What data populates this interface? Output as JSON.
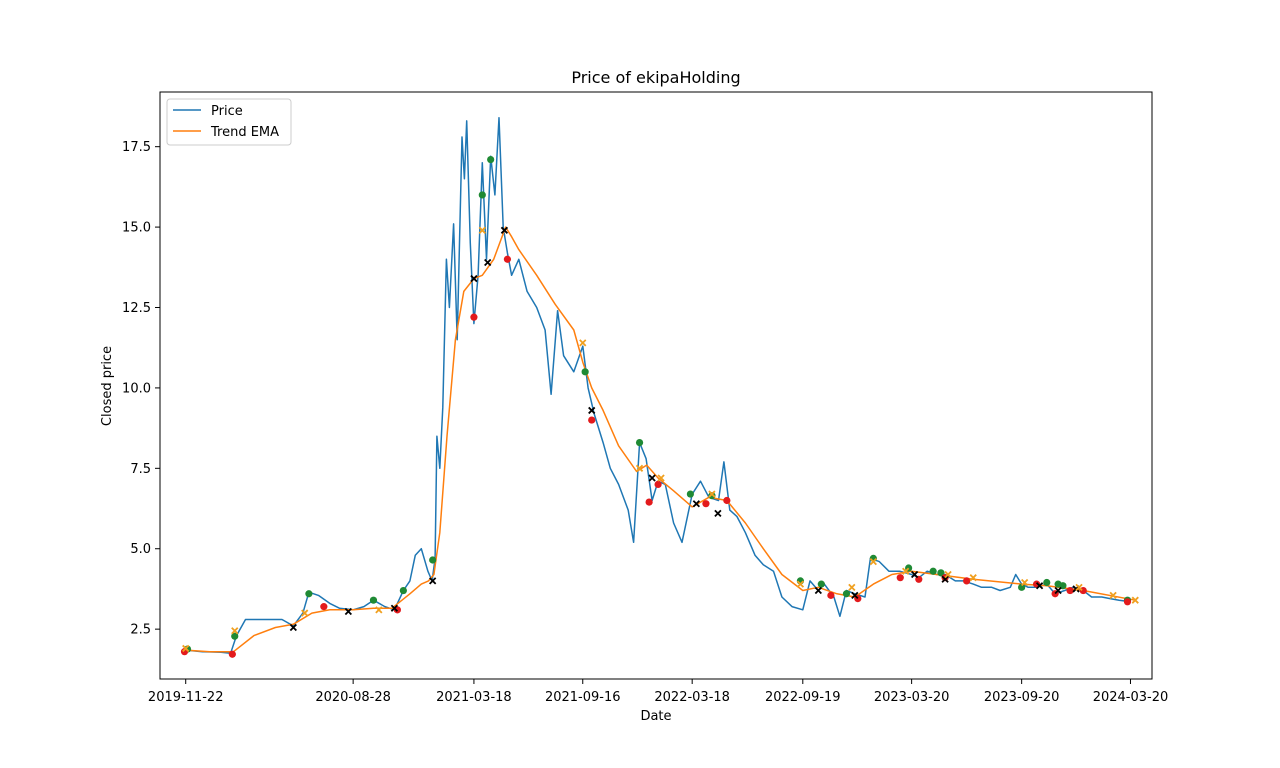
{
  "chart_data": {
    "type": "line",
    "title": "Price of ekipaHolding",
    "xlabel": "Date",
    "ylabel": "Closed price",
    "x_range": [
      "2019-10-10",
      "2024-04-25"
    ],
    "ylim": [
      0.95,
      19.2
    ],
    "x_ticks": [
      "2019-11-22",
      "2020-08-28",
      "2021-03-18",
      "2021-09-16",
      "2022-03-18",
      "2022-09-19",
      "2023-03-20",
      "2023-09-20",
      "2024-03-20"
    ],
    "y_ticks": [
      2.5,
      5.0,
      7.5,
      10.0,
      12.5,
      15.0,
      17.5
    ],
    "y_tick_labels": [
      "2.5",
      "5.0",
      "7.5",
      "10.0",
      "12.5",
      "15.0",
      "17.5"
    ],
    "grid": false,
    "legend_position": "top-left",
    "legend": [
      {
        "label": "Price",
        "color": "#1f77b4"
      },
      {
        "label": "Trend EMA",
        "color": "#ff7f0e"
      }
    ],
    "series": [
      {
        "name": "Price",
        "color": "#1f77b4",
        "points": [
          [
            "2019-11-22",
            1.85
          ],
          [
            "2019-12-20",
            1.8
          ],
          [
            "2020-01-20",
            1.78
          ],
          [
            "2020-02-05",
            1.75
          ],
          [
            "2020-02-15",
            2.3
          ],
          [
            "2020-03-01",
            2.8
          ],
          [
            "2020-04-01",
            2.8
          ],
          [
            "2020-05-01",
            2.8
          ],
          [
            "2020-05-20",
            2.6
          ],
          [
            "2020-06-05",
            3.0
          ],
          [
            "2020-06-15",
            3.65
          ],
          [
            "2020-07-01",
            3.55
          ],
          [
            "2020-07-20",
            3.3
          ],
          [
            "2020-08-05",
            3.15
          ],
          [
            "2020-08-28",
            3.1
          ],
          [
            "2020-09-15",
            3.2
          ],
          [
            "2020-10-01",
            3.4
          ],
          [
            "2020-10-20",
            3.2
          ],
          [
            "2020-11-05",
            3.1
          ],
          [
            "2020-11-20",
            3.7
          ],
          [
            "2020-12-01",
            4.0
          ],
          [
            "2020-12-10",
            4.8
          ],
          [
            "2020-12-20",
            5.0
          ],
          [
            "2020-12-31",
            4.3
          ],
          [
            "2021-01-07",
            4.0
          ],
          [
            "2021-01-12",
            4.7
          ],
          [
            "2021-01-15",
            8.5
          ],
          [
            "2021-01-20",
            7.5
          ],
          [
            "2021-01-25",
            9.4
          ],
          [
            "2021-01-31",
            14.0
          ],
          [
            "2021-02-05",
            12.5
          ],
          [
            "2021-02-12",
            15.1
          ],
          [
            "2021-02-18",
            11.5
          ],
          [
            "2021-02-26",
            17.8
          ],
          [
            "2021-03-02",
            16.5
          ],
          [
            "2021-03-06",
            18.3
          ],
          [
            "2021-03-12",
            14.5
          ],
          [
            "2021-03-18",
            12.0
          ],
          [
            "2021-03-25",
            13.5
          ],
          [
            "2021-04-01",
            17.0
          ],
          [
            "2021-04-08",
            14.0
          ],
          [
            "2021-04-15",
            17.2
          ],
          [
            "2021-04-22",
            16.0
          ],
          [
            "2021-04-29",
            18.4
          ],
          [
            "2021-05-06",
            15.0
          ],
          [
            "2021-05-13",
            14.2
          ],
          [
            "2021-05-20",
            13.5
          ],
          [
            "2021-06-01",
            14.0
          ],
          [
            "2021-06-15",
            13.0
          ],
          [
            "2021-07-01",
            12.5
          ],
          [
            "2021-07-15",
            11.8
          ],
          [
            "2021-07-25",
            9.8
          ],
          [
            "2021-08-05",
            12.4
          ],
          [
            "2021-08-15",
            11.0
          ],
          [
            "2021-09-01",
            10.5
          ],
          [
            "2021-09-16",
            11.3
          ],
          [
            "2021-09-25",
            10.0
          ],
          [
            "2021-10-05",
            9.2
          ],
          [
            "2021-10-20",
            8.3
          ],
          [
            "2021-11-01",
            7.5
          ],
          [
            "2021-11-15",
            7.0
          ],
          [
            "2021-12-01",
            6.2
          ],
          [
            "2021-12-10",
            5.2
          ],
          [
            "2021-12-20",
            8.3
          ],
          [
            "2021-12-31",
            7.8
          ],
          [
            "2022-01-10",
            6.5
          ],
          [
            "2022-01-20",
            7.1
          ],
          [
            "2022-02-01",
            7.0
          ],
          [
            "2022-02-15",
            5.8
          ],
          [
            "2022-03-01",
            5.2
          ],
          [
            "2022-03-18",
            6.7
          ],
          [
            "2022-04-01",
            7.1
          ],
          [
            "2022-04-15",
            6.6
          ],
          [
            "2022-05-01",
            6.5
          ],
          [
            "2022-05-10",
            7.7
          ],
          [
            "2022-05-20",
            6.2
          ],
          [
            "2022-06-01",
            6.0
          ],
          [
            "2022-06-15",
            5.5
          ],
          [
            "2022-07-01",
            4.8
          ],
          [
            "2022-07-15",
            4.5
          ],
          [
            "2022-08-01",
            4.3
          ],
          [
            "2022-08-15",
            3.5
          ],
          [
            "2022-09-01",
            3.2
          ],
          [
            "2022-09-19",
            3.1
          ],
          [
            "2022-10-01",
            4.0
          ],
          [
            "2022-10-15",
            3.7
          ],
          [
            "2022-10-25",
            3.9
          ],
          [
            "2022-11-10",
            3.5
          ],
          [
            "2022-11-20",
            2.9
          ],
          [
            "2022-12-01",
            3.7
          ],
          [
            "2022-12-15",
            3.6
          ],
          [
            "2023-01-01",
            3.5
          ],
          [
            "2023-01-10",
            4.7
          ],
          [
            "2023-01-25",
            4.6
          ],
          [
            "2023-02-10",
            4.3
          ],
          [
            "2023-02-28",
            4.3
          ],
          [
            "2023-03-20",
            4.2
          ],
          [
            "2023-04-01",
            4.1
          ],
          [
            "2023-04-15",
            4.3
          ],
          [
            "2023-05-01",
            4.2
          ],
          [
            "2023-05-15",
            4.2
          ],
          [
            "2023-06-01",
            4.0
          ],
          [
            "2023-06-15",
            4.0
          ],
          [
            "2023-07-01",
            3.9
          ],
          [
            "2023-07-15",
            3.8
          ],
          [
            "2023-08-01",
            3.8
          ],
          [
            "2023-08-15",
            3.7
          ],
          [
            "2023-09-01",
            3.8
          ],
          [
            "2023-09-10",
            4.2
          ],
          [
            "2023-09-20",
            3.9
          ],
          [
            "2023-10-01",
            3.8
          ],
          [
            "2023-10-15",
            3.8
          ],
          [
            "2023-11-01",
            3.9
          ],
          [
            "2023-11-15",
            3.6
          ],
          [
            "2023-12-01",
            3.7
          ],
          [
            "2023-12-15",
            3.8
          ],
          [
            "2024-01-01",
            3.7
          ],
          [
            "2024-01-15",
            3.5
          ],
          [
            "2024-02-01",
            3.5
          ],
          [
            "2024-02-15",
            3.45
          ],
          [
            "2024-03-01",
            3.4
          ],
          [
            "2024-03-20",
            3.35
          ]
        ]
      },
      {
        "name": "Trend EMA",
        "color": "#ff7f0e",
        "points": [
          [
            "2019-11-22",
            1.85
          ],
          [
            "2020-01-01",
            1.8
          ],
          [
            "2020-02-10",
            1.8
          ],
          [
            "2020-03-15",
            2.3
          ],
          [
            "2020-04-20",
            2.55
          ],
          [
            "2020-05-20",
            2.65
          ],
          [
            "2020-06-20",
            3.0
          ],
          [
            "2020-07-20",
            3.1
          ],
          [
            "2020-08-28",
            3.1
          ],
          [
            "2020-10-01",
            3.15
          ],
          [
            "2020-11-01",
            3.15
          ],
          [
            "2020-12-01",
            3.6
          ],
          [
            "2020-12-20",
            3.9
          ],
          [
            "2021-01-01",
            4.0
          ],
          [
            "2021-01-10",
            4.2
          ],
          [
            "2021-01-20",
            5.5
          ],
          [
            "2021-02-01",
            8.5
          ],
          [
            "2021-02-15",
            11.5
          ],
          [
            "2021-03-01",
            13.0
          ],
          [
            "2021-03-18",
            13.4
          ],
          [
            "2021-04-01",
            13.5
          ],
          [
            "2021-04-20",
            14.0
          ],
          [
            "2021-05-10",
            15.0
          ],
          [
            "2021-05-20",
            14.7
          ],
          [
            "2021-06-01",
            14.3
          ],
          [
            "2021-07-01",
            13.5
          ],
          [
            "2021-08-01",
            12.6
          ],
          [
            "2021-09-01",
            11.8
          ],
          [
            "2021-09-16",
            10.8
          ],
          [
            "2021-10-01",
            10.0
          ],
          [
            "2021-10-20",
            9.3
          ],
          [
            "2021-11-15",
            8.2
          ],
          [
            "2021-12-15",
            7.4
          ],
          [
            "2022-01-01",
            7.6
          ],
          [
            "2022-01-20",
            7.2
          ],
          [
            "2022-02-15",
            6.8
          ],
          [
            "2022-03-18",
            6.3
          ],
          [
            "2022-04-15",
            6.6
          ],
          [
            "2022-05-15",
            6.5
          ],
          [
            "2022-06-15",
            5.8
          ],
          [
            "2022-07-15",
            5.0
          ],
          [
            "2022-08-15",
            4.2
          ],
          [
            "2022-09-19",
            3.7
          ],
          [
            "2022-10-15",
            3.8
          ],
          [
            "2022-11-15",
            3.6
          ],
          [
            "2022-12-15",
            3.5
          ],
          [
            "2023-01-15",
            3.9
          ],
          [
            "2023-02-15",
            4.2
          ],
          [
            "2023-03-20",
            4.3
          ],
          [
            "2023-05-01",
            4.2
          ],
          [
            "2023-07-01",
            4.05
          ],
          [
            "2023-09-20",
            3.9
          ],
          [
            "2023-11-01",
            3.85
          ],
          [
            "2024-01-01",
            3.7
          ],
          [
            "2024-03-28",
            3.4
          ]
        ]
      }
    ],
    "markers": {
      "green_dots": [
        [
          "2019-11-25",
          1.88
        ],
        [
          "2020-02-12",
          2.28
        ],
        [
          "2020-06-15",
          3.6
        ],
        [
          "2020-10-01",
          3.4
        ],
        [
          "2020-11-20",
          3.7
        ],
        [
          "2021-01-08",
          4.65
        ],
        [
          "2021-04-01",
          16.0
        ],
        [
          "2021-04-15",
          17.1
        ],
        [
          "2021-09-20",
          10.5
        ],
        [
          "2021-12-20",
          8.3
        ],
        [
          "2022-03-15",
          6.7
        ],
        [
          "2022-04-20",
          6.65
        ],
        [
          "2022-09-15",
          4.0
        ],
        [
          "2022-10-20",
          3.9
        ],
        [
          "2022-12-01",
          3.6
        ],
        [
          "2023-01-15",
          4.7
        ],
        [
          "2023-03-15",
          4.4
        ],
        [
          "2023-04-25",
          4.3
        ],
        [
          "2023-05-08",
          4.25
        ],
        [
          "2023-09-20",
          3.8
        ],
        [
          "2023-11-01",
          3.95
        ],
        [
          "2023-11-20",
          3.9
        ],
        [
          "2023-11-28",
          3.85
        ],
        [
          "2024-03-15",
          3.4
        ]
      ],
      "red_dots": [
        [
          "2019-11-20",
          1.8
        ],
        [
          "2020-02-08",
          1.72
        ],
        [
          "2020-07-10",
          3.2
        ],
        [
          "2020-11-10",
          3.1
        ],
        [
          "2021-03-18",
          12.2
        ],
        [
          "2021-05-13",
          14.0
        ],
        [
          "2021-10-01",
          9.0
        ],
        [
          "2022-01-05",
          6.45
        ],
        [
          "2022-01-20",
          7.0
        ],
        [
          "2022-04-10",
          6.4
        ],
        [
          "2022-05-15",
          6.5
        ],
        [
          "2022-11-05",
          3.55
        ],
        [
          "2022-12-20",
          3.45
        ],
        [
          "2023-03-01",
          4.1
        ],
        [
          "2023-04-01",
          4.05
        ],
        [
          "2023-05-15",
          4.1
        ],
        [
          "2023-06-20",
          4.0
        ],
        [
          "2023-10-15",
          3.9
        ],
        [
          "2023-11-15",
          3.6
        ],
        [
          "2023-12-10",
          3.7
        ],
        [
          "2024-01-01",
          3.7
        ],
        [
          "2024-03-15",
          3.35
        ]
      ],
      "black_x": [
        [
          "2020-05-20",
          2.55
        ],
        [
          "2020-08-20",
          3.05
        ],
        [
          "2020-11-05",
          3.15
        ],
        [
          "2021-01-08",
          4.0
        ],
        [
          "2021-03-18",
          13.4
        ],
        [
          "2021-04-10",
          13.9
        ],
        [
          "2021-05-08",
          14.9
        ],
        [
          "2021-10-01",
          9.3
        ],
        [
          "2022-01-10",
          7.2
        ],
        [
          "2022-03-25",
          6.4
        ],
        [
          "2022-04-30",
          6.1
        ],
        [
          "2022-10-15",
          3.7
        ],
        [
          "2022-12-15",
          3.55
        ],
        [
          "2023-03-25",
          4.2
        ],
        [
          "2023-05-15",
          4.05
        ],
        [
          "2023-10-20",
          3.85
        ],
        [
          "2023-11-20",
          3.7
        ],
        [
          "2023-12-20",
          3.75
        ]
      ],
      "orange_x": [
        [
          "2019-11-22",
          1.9
        ],
        [
          "2020-02-12",
          2.45
        ],
        [
          "2020-06-08",
          3.0
        ],
        [
          "2020-10-10",
          3.1
        ],
        [
          "2021-04-01",
          14.9
        ],
        [
          "2021-09-16",
          11.4
        ],
        [
          "2021-12-20",
          7.5
        ],
        [
          "2022-01-25",
          7.2
        ],
        [
          "2022-04-20",
          6.7
        ],
        [
          "2022-09-15",
          3.9
        ],
        [
          "2022-12-10",
          3.8
        ],
        [
          "2023-01-15",
          4.6
        ],
        [
          "2023-03-10",
          4.3
        ],
        [
          "2023-05-20",
          4.2
        ],
        [
          "2023-07-01",
          4.1
        ],
        [
          "2023-09-25",
          3.95
        ],
        [
          "2023-12-25",
          3.8
        ],
        [
          "2024-02-20",
          3.55
        ],
        [
          "2024-03-28",
          3.4
        ]
      ]
    }
  }
}
